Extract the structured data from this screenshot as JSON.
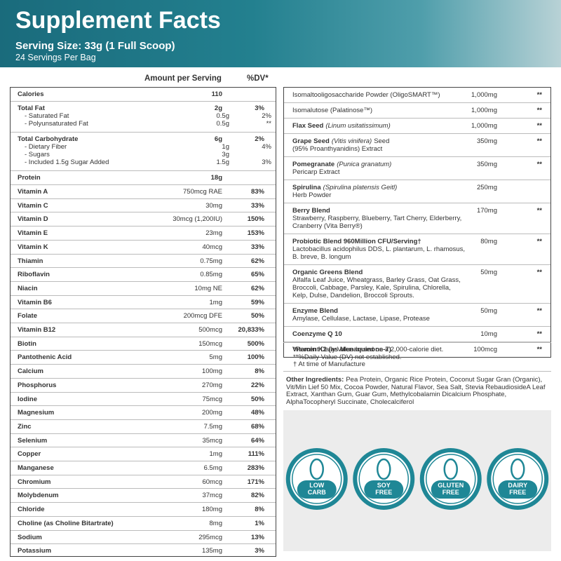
{
  "header": {
    "title": "Supplement Facts",
    "serving_size": "Serving Size: 33g (1 Full Scoop)",
    "servings": "24 Servings Per Bag"
  },
  "left_table": {
    "column_headers": {
      "amount": "Amount per Serving",
      "dv": "%DV*"
    },
    "macros": [
      {
        "name": "Calories",
        "amount": "110"
      },
      {
        "name": "Total Fat",
        "amount": "2g",
        "dv": "3%",
        "sub": [
          {
            "name": "- Saturated Fat",
            "amount": "0.5g",
            "dv": "2%"
          },
          {
            "name": "- Polyunsaturated Fat",
            "amount": "0.5g",
            "dv": "**"
          }
        ]
      },
      {
        "name": "Total Carbohydrate",
        "amount": "6g",
        "dv": "2%",
        "sub": [
          {
            "name": "- Dietary Fiber",
            "amount": "1g",
            "dv": "4%"
          },
          {
            "name": "- Sugars",
            "amount": "3g"
          },
          {
            "name": "- Included 1.5g Sugar Added",
            "amount": "1.5g",
            "dv": "3%"
          }
        ]
      },
      {
        "name": "Protein",
        "amount": "18g"
      }
    ],
    "micronutrients": [
      {
        "name": "Vitamin A",
        "amount": "750mcg RAE",
        "dv": "83%"
      },
      {
        "name": "Vitamin C",
        "amount": "30mg",
        "dv": "33%"
      },
      {
        "name": "Vitamin D",
        "amount": "30mcg (1,200IU)",
        "dv": "150%"
      },
      {
        "name": "Vitamin E",
        "amount": "23mg",
        "dv": "153%"
      },
      {
        "name": "Vitamin K",
        "amount": "40mcg",
        "dv": "33%"
      },
      {
        "name": "Thiamin",
        "amount": "0.75mg",
        "dv": "62%"
      },
      {
        "name": "Riboflavin",
        "amount": "0.85mg",
        "dv": "65%"
      },
      {
        "name": "Niacin",
        "amount": "10mg NE",
        "dv": "62%"
      },
      {
        "name": "Vitamin B6",
        "amount": "1mg",
        "dv": "59%"
      },
      {
        "name": "Folate",
        "amount": "200mcg DFE",
        "dv": "50%"
      },
      {
        "name": "Vitamin B12",
        "amount": "500mcg",
        "dv": "20,833%"
      },
      {
        "name": "Biotin",
        "amount": "150mcg",
        "dv": "500%"
      },
      {
        "name": "Pantothenic Acid",
        "amount": "5mg",
        "dv": "100%"
      },
      {
        "name": "Calcium",
        "amount": "100mg",
        "dv": "8%"
      },
      {
        "name": "Phosphorus",
        "amount": "270mg",
        "dv": "22%"
      },
      {
        "name": "Iodine",
        "amount": "75mcg",
        "dv": "50%"
      },
      {
        "name": "Magnesium",
        "amount": "200mg",
        "dv": "48%"
      },
      {
        "name": "Zinc",
        "amount": "7.5mg",
        "dv": "68%"
      },
      {
        "name": "Selenium",
        "amount": "35mcg",
        "dv": "64%"
      },
      {
        "name": "Copper",
        "amount": "1mg",
        "dv": "111%"
      },
      {
        "name": "Manganese",
        "amount": "6.5mg",
        "dv": "283%"
      },
      {
        "name": "Chromium",
        "amount": "60mcg",
        "dv": "171%"
      },
      {
        "name": "Molybdenum",
        "amount": "37mcg",
        "dv": "82%"
      },
      {
        "name": "Chloride",
        "amount": "180mg",
        "dv": "8%"
      },
      {
        "name": "Choline (as Choline Bitartrate)",
        "amount": "8mg",
        "dv": "1%"
      },
      {
        "name": "Sodium",
        "amount": "295mcg",
        "dv": "13%"
      },
      {
        "name": "Potassium",
        "amount": "135mg",
        "dv": "3%"
      }
    ]
  },
  "right_table": {
    "rows": [
      {
        "detail": "Isomaltooligosaccharide Powder (OligoSMART™)",
        "amount": "1,000mg",
        "dv": "**"
      },
      {
        "detail": "Isomalutose (Palatinose™)",
        "amount": "1,000mg",
        "dv": "**"
      },
      {
        "name": "Flax Seed",
        "latin": "(Linum usitatissimum)",
        "amount": "1,000mg",
        "dv": "**"
      },
      {
        "name": "Grape Seed",
        "latin": "(Vitis vinifera)",
        "name_tail": "Seed",
        "detail": "(95% Proanthyanidins) Extract",
        "amount": "350mg",
        "dv": "**"
      },
      {
        "name": "Pomegranate",
        "latin": "(Punica granatum)",
        "detail": "Pericarp Extract",
        "amount": "350mg",
        "dv": "**"
      },
      {
        "name": "Spirulina",
        "latin": "(Spirulina platensis Geitl)",
        "detail": "Herb Powder",
        "amount": "250mg"
      },
      {
        "name": "Berry Blend",
        "detail": "Strawberry, Raspberry, Blueberry, Tart Cherry, Elderberry, Cranberry (Vita Berry®)",
        "amount": "170mg",
        "dv": "**"
      },
      {
        "name": "Probiotic Blend 960Million CFU/Serving†",
        "detail": "Lactobacillus acidophilus DDS, L. plantarum, L. rhamosus, B. breve, B. longum",
        "amount": "80mg",
        "dv": "**"
      },
      {
        "name": "Organic Greens Blend",
        "detail": "Alfalfa Leaf Juice, Wheatgrass, Barley Grass, Oat Grass, Broccoli, Cabbage, Parsley, Kale, Spirulina, Chlorella, Kelp, Dulse, Dandelion, Broccoli Sprouts.",
        "amount": "50mg",
        "dv": "**"
      },
      {
        "name": "Enzyme Blend",
        "detail": "Amylase, Cellulase, Lactase, Lipase, Protease",
        "amount": "50mg",
        "dv": "**"
      },
      {
        "name": "Coenzyme Q 10",
        "amount": "10mg",
        "dv": "**"
      },
      {
        "name": "Vitamin K2 (as Menaquinone-7)",
        "amount": "100mcg",
        "dv": "**"
      }
    ]
  },
  "footnotes": [
    "*Percent Daily Value based on a 2,000-calorie diet.",
    "**%Daily Value (DV) not established.",
    "† At time of Manufacture"
  ],
  "other_ingredients": {
    "label": "Other Ingredients:",
    "text": "Pea Protein, Organic Rice Protein, Coconut Sugar Gran (Organic), Vit/Min Lief 50 Mix, Cocoa Powder, Natural Flavor, Sea Salt, Stevia RebaudiosideA Leaf Extract, Xanthan Gum, Guar Gum, Methylcobalamin Dicalcium Phosphate, AlphaTocopheryl Succinate, Cholecalciferol"
  },
  "badges": [
    {
      "lines": [
        "LOW",
        "CARB"
      ]
    },
    {
      "lines": [
        "SOY",
        "FREE"
      ]
    },
    {
      "lines": [
        "GLUTEN",
        "FREE"
      ]
    },
    {
      "lines": [
        "DAIRY",
        "FREE"
      ]
    }
  ]
}
